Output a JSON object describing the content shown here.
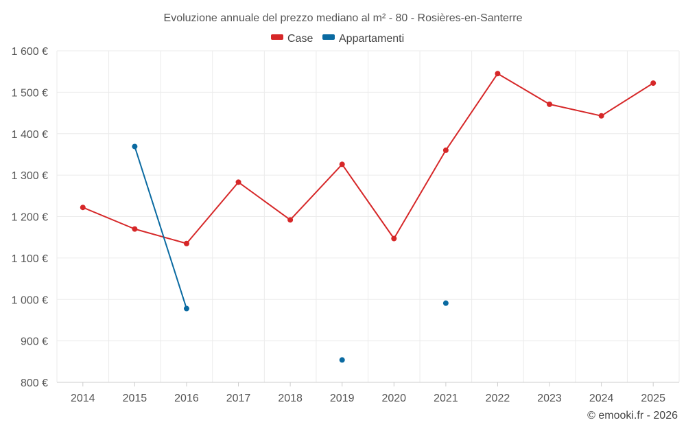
{
  "chart_data": {
    "type": "line",
    "title": "Evoluzione annuale del prezzo mediano al m² - 80 - Rosières-en-Santerre",
    "xlabel": "",
    "ylabel": "",
    "categories": [
      "2014",
      "2015",
      "2016",
      "2017",
      "2018",
      "2019",
      "2020",
      "2021",
      "2022",
      "2023",
      "2024",
      "2025"
    ],
    "ylim": [
      800,
      1600
    ],
    "yticks": [
      800,
      900,
      1000,
      1100,
      1200,
      1300,
      1400,
      1500,
      1600
    ],
    "ytick_labels": [
      "800 €",
      "900 €",
      "1 000 €",
      "1 100 €",
      "1 200 €",
      "1 300 €",
      "1 400 €",
      "1 500 €",
      "1 600 €"
    ],
    "grid": true,
    "legend_position": "top-center",
    "series": [
      {
        "name": "Case",
        "color": "#d62728",
        "values": [
          1222,
          1170,
          1135,
          1283,
          1192,
          1326,
          1147,
          1360,
          1545,
          1471,
          1443,
          1522
        ]
      },
      {
        "name": "Appartamenti",
        "color": "#0a6aa1",
        "values": [
          null,
          1369,
          978,
          null,
          null,
          854,
          null,
          991,
          null,
          null,
          null,
          null
        ]
      }
    ],
    "credit": "© emooki.fr - 2026"
  }
}
